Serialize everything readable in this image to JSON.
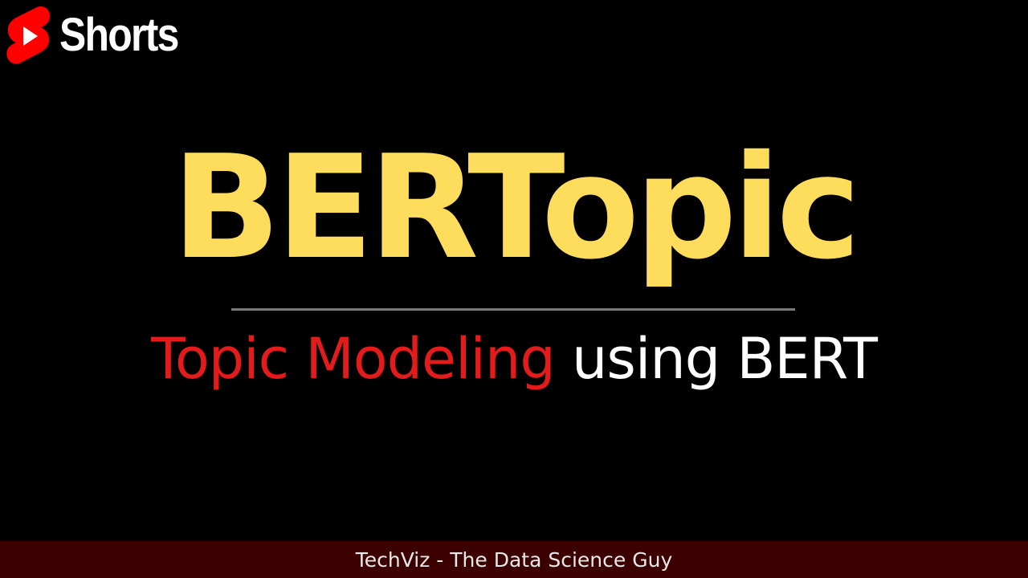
{
  "logo": {
    "icon": "youtube-shorts-icon",
    "label": "Shorts"
  },
  "title": "BERTopic",
  "subtitle": {
    "highlight": "Topic Modeling",
    "rest": "using BERT"
  },
  "footer": {
    "text": "TechViz - The Data Science Guy"
  },
  "colors": {
    "background": "#000000",
    "title": "#ffdd5c",
    "highlight": "#e31b1b",
    "footer_bg": "#3d0000",
    "logo_red": "#ff0000"
  }
}
